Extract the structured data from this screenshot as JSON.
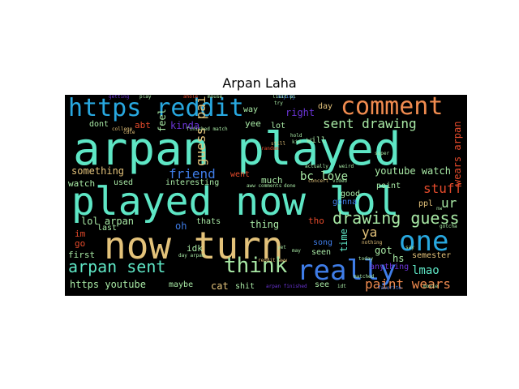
{
  "title": "Arpan Laha",
  "words": {
    "arpan_played": "arpan played",
    "played_now_lol": "played now lol",
    "now_turn": "now turn",
    "https_reddit": "https reddit",
    "comment": "comment",
    "really": "really",
    "one": "one",
    "think": "think",
    "arpan_sent": "arpan sent",
    "drawing_guess": "drawing guess",
    "sent_drawing": "sent drawing",
    "guess_paint": "guess paint",
    "paint_wears": "paint wears",
    "stuff": "stuff",
    "lmao": "lmao",
    "https_youtube": "https youtube",
    "friend": "friend",
    "youtube_watch": "youtube watch",
    "bc_love": "bc love",
    "ya": "ya",
    "something": "something",
    "lol_arpan": "lol arpan",
    "right": "right",
    "kinda": "kinda",
    "feel": "feel",
    "time": "time",
    "wears_arpan": "wears arpan",
    "ur": "ur",
    "cat": "cat",
    "shit": "shit",
    "see": "see",
    "maybe": "maybe",
    "hs": "hs",
    "semester": "semester",
    "anything": "anything",
    "got": "got",
    "idk": "idk",
    "first": "first",
    "thing": "thing",
    "thats": "thats",
    "oh": "oh",
    "went": "went",
    "much": "much",
    "watch": "watch",
    "used": "used",
    "interesting": "interesting",
    "dont": "dont",
    "abt": "abt",
    "last": "last",
    "go": "go",
    "im": "im",
    "yee": "yee",
    "lot": "lot",
    "day": "day",
    "will": "will",
    "seen": "seen",
    "good": "good",
    "point": "point",
    "gonna": "gonna",
    "ppl": "ppl",
    "song": "song",
    "tho": "tho",
    "way": "way",
    "actually": "actually",
    "college": "college",
    "finished_match": "finished match",
    "getting": "getting",
    "play": "play",
    "arpan_finished": "arpan finished",
    "day_arpan": "day arpan",
    "nothing": "nothing",
    "today": "today",
    "movie": "movie",
    "concert": "concert",
    "video": "video",
    "reddit_aww": "reddit aww",
    "cute": "cute",
    "kid": "kid",
    "ahole": "ahole",
    "random": "random",
    "still": "still",
    "gotcha": "gotcha",
    "say": "say",
    "mouse": "mouse",
    "hold": "hold",
    "saying": "saying",
    "super": "super",
    "lisit_pl": "lisit pl",
    "try": "try",
    "aww_comments": "aww comments",
    "done": "done",
    "yet": "yet",
    "may": "may",
    "weird": "weird",
    "matched": "matched",
    "favorite": "favorite",
    "idt": "idt",
    "nw": "nw"
  },
  "colors": {
    "background": "#000000",
    "teal": "#5ee6c5",
    "blue": "#3f7de8",
    "cyan": "#28a8e0",
    "sand": "#e3c27a",
    "orange": "#f08b4f",
    "red": "#e44a2b",
    "light_green": "#a8e9a5",
    "lime": "#c8e089",
    "purple": "#6a34d6",
    "dark_red": "#9a1e14"
  }
}
